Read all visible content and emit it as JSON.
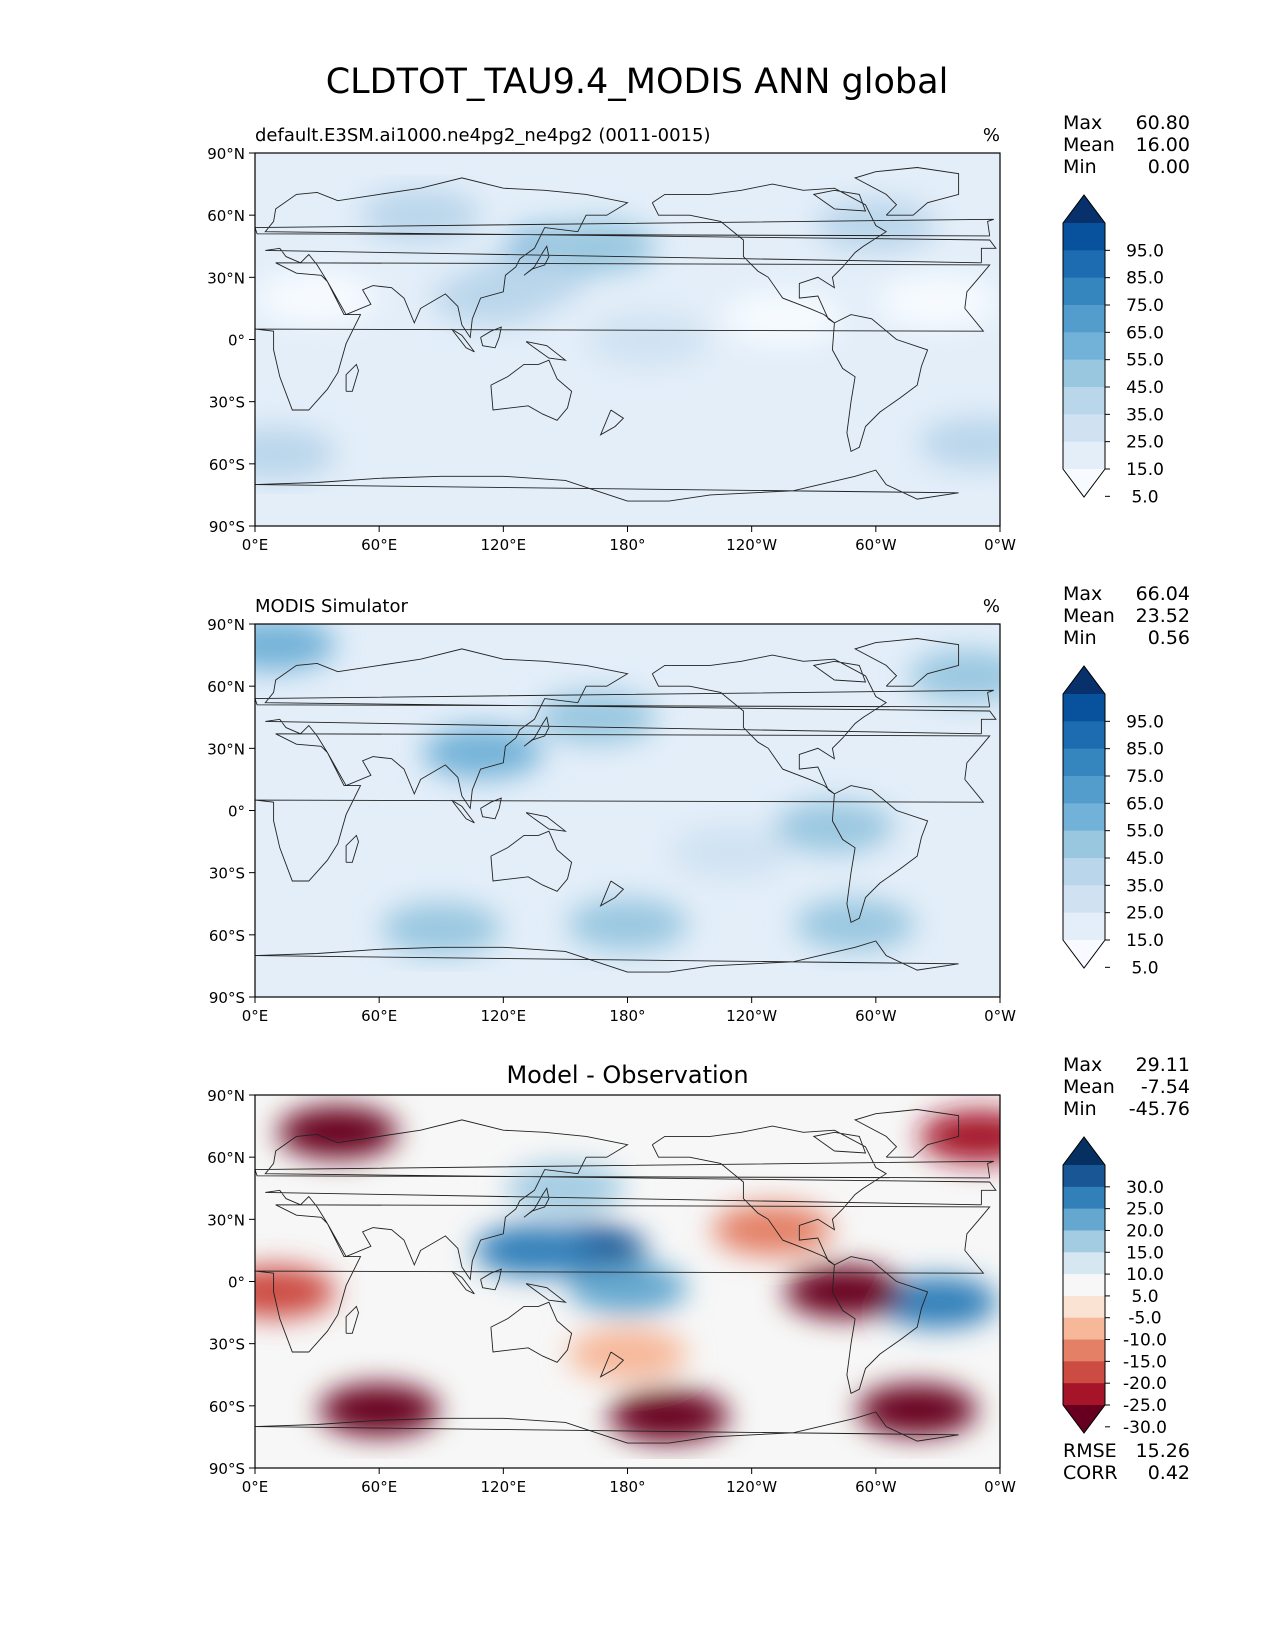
{
  "figure_title": "CLDTOT_TAU9.4_MODIS ANN global",
  "colors": {
    "sequential": [
      "#f7fbff",
      "#e3eef9",
      "#d0e2f2",
      "#bad6eb",
      "#99c7e0",
      "#73b2d8",
      "#529dcc",
      "#3585bf",
      "#1d6cb1",
      "#08519c",
      "#08306b"
    ],
    "diverging": [
      "#67001f",
      "#a51429",
      "#cc4c43",
      "#e48066",
      "#f7b799",
      "#fbe3d4",
      "#f7f7f7",
      "#d6e7f1",
      "#a3cce3",
      "#65a8cf",
      "#3280ba",
      "#195696",
      "#053061"
    ]
  },
  "panels": [
    {
      "id": "test",
      "left_title": "default.E3SM.ai1000.ne4pg2_ne4pg2 (0011-0015)",
      "center_title": "",
      "right_title": "%",
      "stats": [
        {
          "label": "Max",
          "value": "60.80"
        },
        {
          "label": "Mean",
          "value": "16.00"
        },
        {
          "label": "Min",
          "value": "0.00"
        }
      ],
      "colorbar_labels": [
        "95.0",
        "85.0",
        "75.0",
        "65.0",
        "55.0",
        "45.0",
        "35.0",
        "25.0",
        "15.0",
        "5.0"
      ],
      "bottom_stats": []
    },
    {
      "id": "reference",
      "left_title": "MODIS Simulator",
      "center_title": "",
      "right_title": "%",
      "stats": [
        {
          "label": "Max",
          "value": "66.04"
        },
        {
          "label": "Mean",
          "value": "23.52"
        },
        {
          "label": "Min",
          "value": "0.56"
        }
      ],
      "colorbar_labels": [
        "95.0",
        "85.0",
        "75.0",
        "65.0",
        "55.0",
        "45.0",
        "35.0",
        "25.0",
        "15.0",
        "5.0"
      ],
      "bottom_stats": []
    },
    {
      "id": "difference",
      "left_title": "",
      "center_title": "Model - Observation",
      "right_title": "",
      "stats": [
        {
          "label": "Max",
          "value": "29.11"
        },
        {
          "label": "Mean",
          "value": "-7.54"
        },
        {
          "label": "Min",
          "value": "-45.76"
        }
      ],
      "colorbar_labels": [
        "30.0",
        "25.0",
        "20.0",
        "15.0",
        "10.0",
        "5.0",
        "-5.0",
        "-10.0",
        "-15.0",
        "-20.0",
        "-25.0",
        "-30.0"
      ],
      "bottom_stats": [
        {
          "label": "RMSE",
          "value": "15.26"
        },
        {
          "label": "CORR",
          "value": "0.42"
        }
      ]
    }
  ],
  "axes": {
    "lat_ticks": [
      "90°N",
      "60°N",
      "30°N",
      "0°",
      "30°S",
      "60°S",
      "90°S"
    ],
    "lon_ticks": [
      "0°E",
      "60°E",
      "120°E",
      "180°",
      "120°W",
      "60°W",
      "0°W"
    ]
  },
  "chart_data": [
    {
      "type": "heatmap",
      "title": "default.E3SM.ai1000.ne4pg2_ne4pg2 (0011-0015)",
      "units": "%",
      "x_range": [
        0,
        360
      ],
      "y_range": [
        -90,
        90
      ],
      "levels": [
        0,
        5,
        15,
        25,
        35,
        45,
        55,
        65,
        75,
        85,
        95,
        100
      ],
      "colorbar_extend": "both",
      "stats": {
        "max": 60.8,
        "mean": 16.0,
        "min": 0.0
      },
      "blobs": [
        {
          "lon": 150,
          "lat": 43,
          "value": 45
        },
        {
          "lon": 165,
          "lat": 45,
          "value": 42
        },
        {
          "lon": 130,
          "lat": 28,
          "value": 30
        },
        {
          "lon": 115,
          "lat": 20,
          "value": 28
        },
        {
          "lon": 80,
          "lat": 60,
          "value": 25
        },
        {
          "lon": 300,
          "lat": 55,
          "value": 28
        },
        {
          "lon": 230,
          "lat": -30,
          "value": 12
        },
        {
          "lon": 10,
          "lat": -55,
          "value": 25
        },
        {
          "lon": 190,
          "lat": 0,
          "value": 15
        },
        {
          "lon": 350,
          "lat": -50,
          "value": 30
        },
        {
          "lon": 30,
          "lat": 20,
          "value": 2
        },
        {
          "lon": 255,
          "lat": 10,
          "value": 3
        },
        {
          "lon": 330,
          "lat": 18,
          "value": 4
        }
      ]
    },
    {
      "type": "heatmap",
      "title": "MODIS Simulator",
      "units": "%",
      "x_range": [
        0,
        360
      ],
      "y_range": [
        -90,
        90
      ],
      "levels": [
        0,
        5,
        15,
        25,
        35,
        45,
        55,
        65,
        75,
        85,
        95,
        100
      ],
      "colorbar_extend": "both",
      "stats": {
        "max": 66.04,
        "mean": 23.52,
        "min": 0.56
      },
      "blobs": [
        {
          "lon": 180,
          "lat": -55,
          "value": 42
        },
        {
          "lon": 90,
          "lat": -57,
          "value": 42
        },
        {
          "lon": 290,
          "lat": -55,
          "value": 40
        },
        {
          "lon": 110,
          "lat": 28,
          "value": 50
        },
        {
          "lon": 165,
          "lat": 45,
          "value": 38
        },
        {
          "lon": 10,
          "lat": 80,
          "value": 45
        },
        {
          "lon": 345,
          "lat": 65,
          "value": 40
        },
        {
          "lon": 280,
          "lat": -8,
          "value": 40
        },
        {
          "lon": 195,
          "lat": 0,
          "value": 10
        },
        {
          "lon": 230,
          "lat": -20,
          "value": 18
        },
        {
          "lon": 20,
          "lat": 22,
          "value": 5
        },
        {
          "lon": 330,
          "lat": -25,
          "value": 10
        }
      ]
    },
    {
      "type": "heatmap",
      "title": "Model - Observation",
      "x_range": [
        0,
        360
      ],
      "y_range": [
        -90,
        90
      ],
      "levels": [
        -35,
        -30,
        -25,
        -20,
        -15,
        -10,
        -5,
        5,
        10,
        15,
        20,
        25,
        30,
        35
      ],
      "colorbar_extend": "both",
      "stats": {
        "max": 29.11,
        "mean": -7.54,
        "min": -45.76,
        "rmse": 15.26,
        "corr": 0.42
      },
      "blobs": [
        {
          "lon": 160,
          "lat": 15,
          "value": 25
        },
        {
          "lon": 135,
          "lat": 15,
          "value": 20
        },
        {
          "lon": 180,
          "lat": -3,
          "value": 15
        },
        {
          "lon": 330,
          "lat": -10,
          "value": 20
        },
        {
          "lon": 150,
          "lat": 45,
          "value": 10
        },
        {
          "lon": 40,
          "lat": 72,
          "value": -35
        },
        {
          "lon": 350,
          "lat": 70,
          "value": -30
        },
        {
          "lon": 285,
          "lat": -5,
          "value": -35
        },
        {
          "lon": 250,
          "lat": 25,
          "value": -20
        },
        {
          "lon": 10,
          "lat": -5,
          "value": -25
        },
        {
          "lon": 200,
          "lat": -65,
          "value": -40
        },
        {
          "lon": 60,
          "lat": -62,
          "value": -38
        },
        {
          "lon": 320,
          "lat": -62,
          "value": -38
        },
        {
          "lon": 180,
          "lat": -35,
          "value": -15
        }
      ]
    }
  ]
}
